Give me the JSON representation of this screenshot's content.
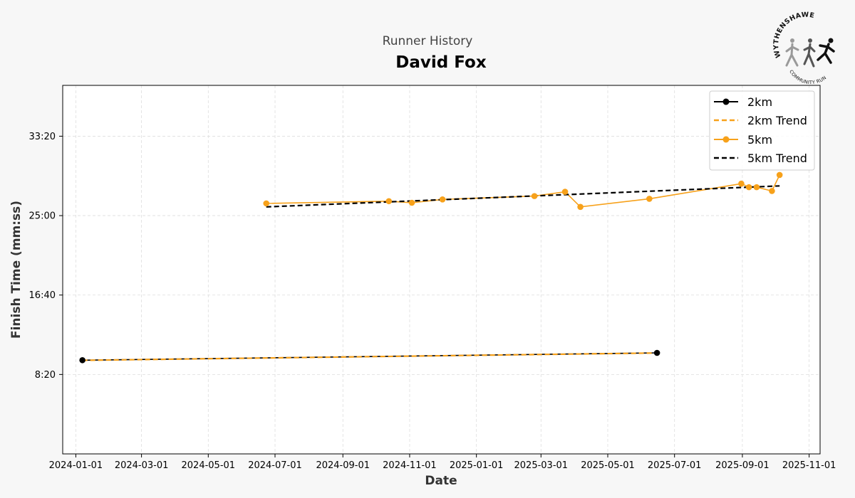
{
  "header": {
    "subtitle": "Runner History",
    "runner_name": "David Fox"
  },
  "logo": {
    "top_text": "WYTHENSHAWE",
    "bottom_text": "COMMUNITY RUN"
  },
  "colors": {
    "background": "#f7f7f7",
    "plot_background": "#ffffff",
    "orange": "#f7a11a",
    "black": "#000000",
    "grid": "#dddddd"
  },
  "chart_data": {
    "type": "line",
    "xlabel": "Date",
    "ylabel": "Finish Time (mm:ss)",
    "x_type": "date",
    "xlim": [
      "2023-12-20",
      "2025-11-11"
    ],
    "ylim_seconds": [
      0,
      2320
    ],
    "x_ticks": [
      "2024-01-01",
      "2024-03-01",
      "2024-05-01",
      "2024-07-01",
      "2024-09-01",
      "2024-11-01",
      "2025-01-01",
      "2025-03-01",
      "2025-05-01",
      "2025-07-01",
      "2025-09-01",
      "2025-11-01"
    ],
    "y_ticks": [
      {
        "seconds": 500,
        "label": "8:20"
      },
      {
        "seconds": 1000,
        "label": "16:40"
      },
      {
        "seconds": 1500,
        "label": "25:00"
      },
      {
        "seconds": 2000,
        "label": "33:20"
      }
    ],
    "grid": true,
    "legend_position": "top-right",
    "series": [
      {
        "name": "2km",
        "style": "line-marker",
        "color": "#000000",
        "points": [
          {
            "x": "2024-01-07",
            "y_seconds": 590,
            "y": "9:50"
          },
          {
            "x": "2025-06-15",
            "y_seconds": 636,
            "y": "10:36"
          }
        ]
      },
      {
        "name": "2km Trend",
        "style": "dashed",
        "color": "#f7a11a",
        "points": [
          {
            "x": "2024-01-07",
            "y_seconds": 589
          },
          {
            "x": "2025-06-15",
            "y_seconds": 635
          }
        ]
      },
      {
        "name": "5km",
        "style": "line-marker",
        "color": "#f7a11a",
        "points": [
          {
            "x": "2024-06-23",
            "y_seconds": 1577,
            "y": "26:17"
          },
          {
            "x": "2024-10-13",
            "y_seconds": 1591,
            "y": "26:31"
          },
          {
            "x": "2024-11-03",
            "y_seconds": 1581,
            "y": "26:21"
          },
          {
            "x": "2024-12-01",
            "y_seconds": 1602,
            "y": "26:42"
          },
          {
            "x": "2025-02-23",
            "y_seconds": 1623,
            "y": "27:03"
          },
          {
            "x": "2025-03-23",
            "y_seconds": 1650,
            "y": "27:30"
          },
          {
            "x": "2025-04-06",
            "y_seconds": 1555,
            "y": "25:55"
          },
          {
            "x": "2025-06-08",
            "y_seconds": 1606,
            "y": "26:46"
          },
          {
            "x": "2025-08-31",
            "y_seconds": 1701,
            "y": "28:21"
          },
          {
            "x": "2025-09-07",
            "y_seconds": 1679,
            "y": "27:59"
          },
          {
            "x": "2025-09-14",
            "y_seconds": 1679,
            "y": "27:59"
          },
          {
            "x": "2025-09-28",
            "y_seconds": 1655,
            "y": "27:35"
          },
          {
            "x": "2025-10-05",
            "y_seconds": 1756,
            "y": "29:16"
          }
        ]
      },
      {
        "name": "5km Trend",
        "style": "dashed",
        "color": "#000000",
        "points": [
          {
            "x": "2024-06-23",
            "y_seconds": 1555
          },
          {
            "x": "2025-10-05",
            "y_seconds": 1687
          }
        ]
      }
    ]
  }
}
